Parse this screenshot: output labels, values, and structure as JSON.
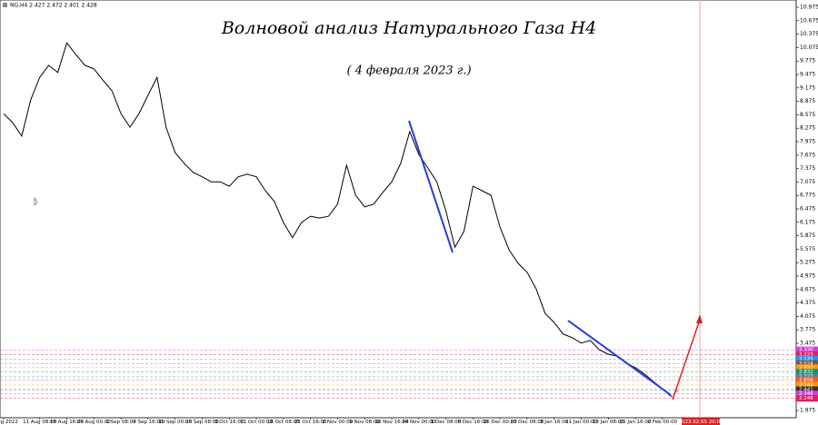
{
  "chart_data": {
    "type": "line",
    "title": "Волновой анализ Натурального Газа H4",
    "subtitle": "( 4 февраля 2023 г.)",
    "symbol_info": "NG,H4  2.427 2.472 2.401 2.428",
    "crosshair_label": "2023.02.05 20:00",
    "color": "#000000",
    "grid": false,
    "categories": [
      "4 Aug 2022",
      null,
      null,
      null,
      "11 Aug 08:00",
      null,
      null,
      "18 Aug 16:00",
      null,
      null,
      "26 Aug 00:00",
      null,
      null,
      "2 Sep 08:00",
      null,
      null,
      "9 Sep 16:00",
      null,
      null,
      "19 Sep 00:00",
      null,
      null,
      "26 Sep 08:00",
      null,
      null,
      "3 Oct 16:00",
      null,
      null,
      "11 Oct 00:00",
      null,
      null,
      "18 Oct 08:00",
      null,
      null,
      "25 Oct 16:00",
      null,
      null,
      "2 Nov 00:00",
      null,
      null,
      "9 Nov 08:00",
      null,
      null,
      "16 Nov 16:00",
      null,
      null,
      "24 Nov 00:00",
      null,
      null,
      "1 Dec 08:00",
      null,
      null,
      "8 Dec 16:00",
      null,
      null,
      "16 Dec 00:00",
      null,
      null,
      "23 Dec 08:00",
      null,
      null,
      "3 Jan 16:00",
      null,
      null,
      "11 Jan 00:00",
      null,
      null,
      "18 Jan 08:00",
      null,
      null,
      "25 Jan 16:00",
      null,
      null,
      "2 Feb 00:00",
      null
    ],
    "values": [
      8.6,
      8.4,
      8.1,
      8.91,
      9.41,
      9.68,
      9.52,
      10.18,
      9.92,
      9.68,
      9.6,
      9.35,
      9.11,
      8.6,
      8.3,
      8.6,
      9.01,
      9.41,
      8.3,
      7.73,
      7.49,
      7.29,
      7.19,
      7.08,
      7.08,
      6.98,
      7.19,
      7.25,
      7.19,
      6.88,
      6.64,
      6.17,
      5.83,
      6.17,
      6.31,
      6.27,
      6.31,
      6.58,
      7.45,
      6.78,
      6.52,
      6.58,
      6.84,
      7.08,
      7.49,
      8.2,
      7.69,
      7.39,
      7.08,
      6.43,
      5.62,
      5.97,
      6.98,
      6.88,
      6.78,
      6.07,
      5.56,
      5.26,
      5.06,
      4.69,
      4.14,
      3.94,
      3.68,
      3.6,
      3.48,
      3.54,
      3.33,
      3.23,
      3.19,
      3.03,
      2.93,
      2.79,
      2.62,
      2.46,
      2.28
    ],
    "ylim": [
      1.813,
      11.137
    ],
    "yticks": [
      1.975,
      2.275,
      2.575,
      2.875,
      3.175,
      3.475,
      3.775,
      4.075,
      4.375,
      4.675,
      4.975,
      5.275,
      5.575,
      5.875,
      6.175,
      6.475,
      6.775,
      7.075,
      7.375,
      7.675,
      7.975,
      8.275,
      8.575,
      8.875,
      9.175,
      9.475,
      9.775,
      10.075,
      10.375,
      10.675,
      10.975
    ],
    "levels": [
      {
        "value": 3.33,
        "label": "3.330",
        "color": "#d43fd4"
      },
      {
        "value": 3.223,
        "label": "3.223",
        "color": "#e91e63"
      },
      {
        "value": 3.125,
        "label": "3.125",
        "color": "#2196f3"
      },
      {
        "value": 3.024,
        "label": "3.024",
        "color": "#795548"
      },
      {
        "value": 2.932,
        "label": "2.932",
        "color": "#ff9800"
      },
      {
        "value": 2.832,
        "label": "2.832",
        "color": "#009688"
      },
      {
        "value": 2.727,
        "label": "2.727",
        "color": "#607d8b"
      },
      {
        "value": 2.656,
        "label": "2.656",
        "color": "#ff5722"
      },
      {
        "value": 2.545,
        "label": "2.545",
        "color": "#ff9800"
      },
      {
        "value": 2.441,
        "label": "2.441",
        "color": "#333333"
      },
      {
        "value": 2.346,
        "label": "2.346",
        "color": "#d43fd4"
      },
      {
        "value": 2.246,
        "label": "2.246",
        "color": "#e91e63"
      }
    ]
  }
}
